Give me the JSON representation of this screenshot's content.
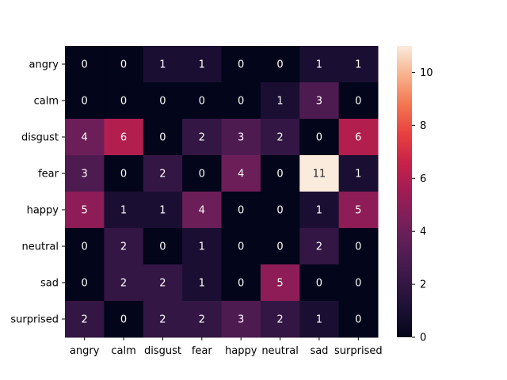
{
  "chart_data": {
    "type": "heatmap",
    "title": "",
    "xlabel": "",
    "ylabel": "",
    "x_categories": [
      "angry",
      "calm",
      "disgust",
      "fear",
      "happy",
      "neutral",
      "sad",
      "surprised"
    ],
    "y_categories": [
      "angry",
      "calm",
      "disgust",
      "fear",
      "happy",
      "neutral",
      "sad",
      "surprised"
    ],
    "values": [
      [
        0,
        0,
        1,
        1,
        0,
        0,
        1,
        1
      ],
      [
        0,
        0,
        0,
        0,
        0,
        1,
        3,
        0
      ],
      [
        4,
        6,
        0,
        2,
        3,
        2,
        0,
        6
      ],
      [
        3,
        0,
        2,
        0,
        4,
        0,
        11,
        1
      ],
      [
        5,
        1,
        1,
        4,
        0,
        0,
        1,
        5
      ],
      [
        0,
        2,
        0,
        1,
        0,
        0,
        2,
        0
      ],
      [
        0,
        2,
        2,
        1,
        0,
        5,
        0,
        0
      ],
      [
        2,
        0,
        2,
        2,
        3,
        2,
        1,
        0
      ]
    ],
    "annotations": true,
    "colorbar": {
      "min": 0,
      "max": 11,
      "ticks": [
        0,
        2,
        4,
        6,
        8,
        10
      ],
      "colormap": "rocket",
      "placement": "right"
    },
    "grid": false
  }
}
